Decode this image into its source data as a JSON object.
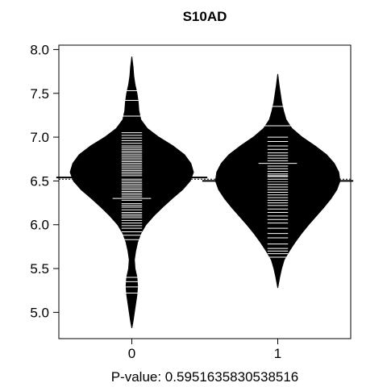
{
  "chart_data": {
    "type": "beanplot",
    "title": "S10AD",
    "xlabel": "P-value: 0.5951635830538516",
    "ylabel": "",
    "ylim": [
      4.7,
      8.05
    ],
    "yticks": [
      "5.0",
      "5.5",
      "6.0",
      "6.5",
      "7.0",
      "7.5",
      "8.0"
    ],
    "categories": [
      "0",
      "1"
    ],
    "overall_mean": 6.52,
    "grid": false,
    "fill_color": "#000000",
    "line_color": "#ffffff",
    "series": [
      {
        "category": "0",
        "mean": 6.54,
        "density_profile": [
          [
            4.82,
            0.0
          ],
          [
            4.9,
            0.02
          ],
          [
            5.0,
            0.04
          ],
          [
            5.1,
            0.06
          ],
          [
            5.2,
            0.08
          ],
          [
            5.3,
            0.09
          ],
          [
            5.4,
            0.08
          ],
          [
            5.5,
            0.05
          ],
          [
            5.6,
            0.04
          ],
          [
            5.7,
            0.06
          ],
          [
            5.8,
            0.09
          ],
          [
            5.9,
            0.14
          ],
          [
            6.0,
            0.22
          ],
          [
            6.1,
            0.34
          ],
          [
            6.2,
            0.48
          ],
          [
            6.3,
            0.63
          ],
          [
            6.4,
            0.79
          ],
          [
            6.5,
            0.91
          ],
          [
            6.6,
            0.96
          ],
          [
            6.7,
            0.92
          ],
          [
            6.8,
            0.82
          ],
          [
            6.9,
            0.64
          ],
          [
            7.0,
            0.42
          ],
          [
            7.1,
            0.24
          ],
          [
            7.2,
            0.14
          ],
          [
            7.3,
            0.11
          ],
          [
            7.4,
            0.1
          ],
          [
            7.5,
            0.08
          ],
          [
            7.6,
            0.05
          ],
          [
            7.7,
            0.03
          ],
          [
            7.8,
            0.02
          ],
          [
            7.92,
            0.0
          ]
        ],
        "observations": [
          5.22,
          5.29,
          5.35,
          5.4,
          5.83,
          5.88,
          5.92,
          5.96,
          5.99,
          6.02,
          6.05,
          6.08,
          6.1,
          6.12,
          6.14,
          6.17,
          6.2,
          6.22,
          6.24,
          6.28,
          6.3,
          6.32,
          6.34,
          6.36,
          6.38,
          6.4,
          6.42,
          6.44,
          6.46,
          6.48,
          6.5,
          6.52,
          6.54,
          6.56,
          6.58,
          6.6,
          6.62,
          6.64,
          6.66,
          6.68,
          6.7,
          6.72,
          6.74,
          6.76,
          6.78,
          6.8,
          6.82,
          6.84,
          6.86,
          6.88,
          6.9,
          6.93,
          6.96,
          6.99,
          7.02,
          7.05,
          7.24,
          7.42,
          7.53
        ],
        "wide_observations": [
          6.3,
          7.24
        ]
      },
      {
        "category": "1",
        "mean": 6.5,
        "density_profile": [
          [
            5.28,
            0.0
          ],
          [
            5.4,
            0.03
          ],
          [
            5.5,
            0.06
          ],
          [
            5.6,
            0.1
          ],
          [
            5.7,
            0.18
          ],
          [
            5.8,
            0.27
          ],
          [
            5.9,
            0.37
          ],
          [
            6.0,
            0.48
          ],
          [
            6.1,
            0.6
          ],
          [
            6.2,
            0.72
          ],
          [
            6.3,
            0.83
          ],
          [
            6.4,
            0.92
          ],
          [
            6.5,
            0.97
          ],
          [
            6.6,
            0.95
          ],
          [
            6.7,
            0.88
          ],
          [
            6.8,
            0.76
          ],
          [
            6.9,
            0.58
          ],
          [
            7.0,
            0.38
          ],
          [
            7.1,
            0.22
          ],
          [
            7.2,
            0.13
          ],
          [
            7.3,
            0.09
          ],
          [
            7.4,
            0.06
          ],
          [
            7.5,
            0.04
          ],
          [
            7.6,
            0.02
          ],
          [
            7.72,
            0.0
          ]
        ],
        "observations": [
          5.63,
          5.67,
          5.7,
          5.73,
          5.78,
          5.85,
          5.9,
          5.96,
          6.02,
          6.06,
          6.1,
          6.14,
          6.18,
          6.22,
          6.25,
          6.28,
          6.31,
          6.34,
          6.37,
          6.4,
          6.43,
          6.46,
          6.49,
          6.52,
          6.55,
          6.56,
          6.58,
          6.61,
          6.64,
          6.67,
          6.7,
          6.73,
          6.76,
          6.79,
          6.82,
          6.86,
          6.9,
          6.95,
          7.0,
          7.13,
          7.35
        ],
        "wide_observations": [
          6.7,
          7.13
        ]
      }
    ]
  }
}
